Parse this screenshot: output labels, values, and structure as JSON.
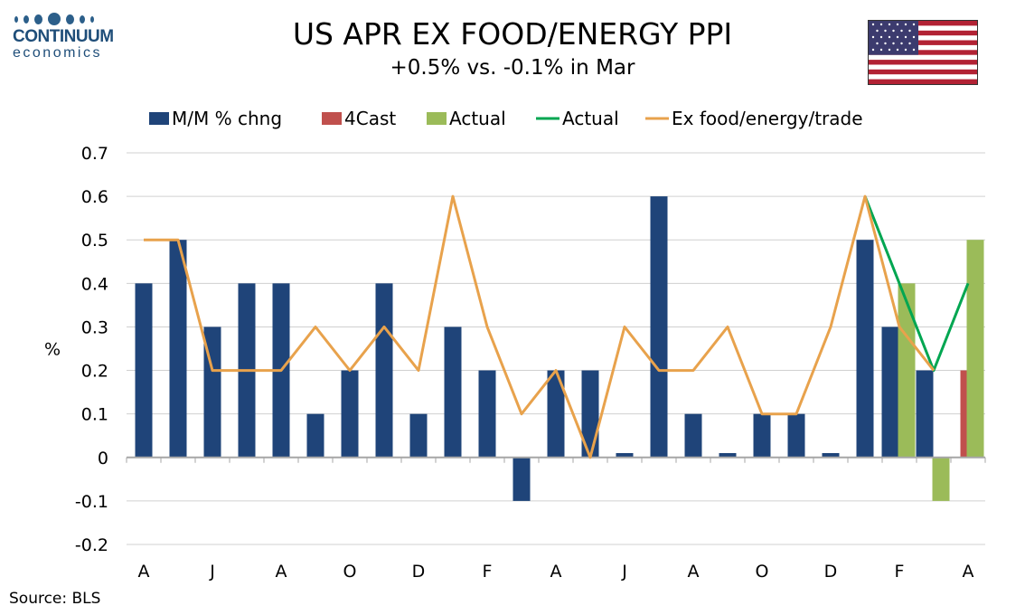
{
  "logo": {
    "name": "CONTINUUM",
    "sub": "economics"
  },
  "source": "Source: BLS",
  "colors": {
    "mm_bar": "#1f4479",
    "forecast_bar": "#c0504d",
    "actual_bar": "#9bbb59",
    "actual_line": "#00a651",
    "ex_trade_line": "#e8a24c",
    "grid": "#d0d0d0"
  },
  "chart_data": {
    "type": "bar",
    "title": "US APR EX FOOD/ENERGY PPI",
    "subtitle": "+0.5% vs. -0.1% in Mar",
    "ylabel": "%",
    "ylim": [
      -0.2,
      0.7
    ],
    "yticks": [
      "0.7",
      "0.6",
      "0.5",
      "0.4",
      "0.3",
      "0.2",
      "0.1",
      "0",
      "-0.1",
      "-0.2"
    ],
    "grid": true,
    "legend_position": "top",
    "legend": [
      "M/M % chng",
      "4Cast",
      "Actual",
      "Actual",
      "Ex food/energy/trade"
    ],
    "x_tick_labels": [
      "A",
      "J",
      "A",
      "O",
      "D",
      "F",
      "A",
      "J",
      "A",
      "O",
      "D",
      "F",
      "A"
    ],
    "n_periods": 25,
    "series": [
      {
        "name": "M/M % chng",
        "kind": "bar",
        "values": [
          0.4,
          0.5,
          0.3,
          0.4,
          0.4,
          0.1,
          0.2,
          0.4,
          0.1,
          0.3,
          0.2,
          -0.1,
          0.2,
          0.2,
          0.01,
          0.6,
          0.1,
          0.01,
          0.1,
          0.1,
          0.01,
          0.5,
          0.3,
          0.2,
          null
        ]
      },
      {
        "name": "4Cast",
        "kind": "bar",
        "values": [
          null,
          null,
          null,
          null,
          null,
          null,
          null,
          null,
          null,
          null,
          null,
          null,
          null,
          null,
          null,
          null,
          null,
          null,
          null,
          null,
          null,
          null,
          null,
          null,
          0.2
        ]
      },
      {
        "name": "Actual",
        "kind": "bar",
        "values": [
          null,
          null,
          null,
          null,
          null,
          null,
          null,
          null,
          null,
          null,
          null,
          null,
          null,
          null,
          null,
          null,
          null,
          null,
          null,
          null,
          null,
          null,
          0.4,
          -0.1,
          0.5
        ]
      },
      {
        "name": "Actual",
        "kind": "line",
        "values": [
          null,
          null,
          null,
          null,
          null,
          null,
          null,
          null,
          null,
          null,
          null,
          null,
          null,
          null,
          null,
          null,
          null,
          null,
          null,
          null,
          null,
          0.6,
          0.4,
          0.2,
          0.4
        ]
      },
      {
        "name": "Ex food/energy/trade",
        "kind": "line",
        "values": [
          0.5,
          0.5,
          0.2,
          0.2,
          0.2,
          0.3,
          0.2,
          0.3,
          0.2,
          0.6,
          0.3,
          0.1,
          0.2,
          0.0,
          0.3,
          0.2,
          0.2,
          0.3,
          0.1,
          0.1,
          0.3,
          0.6,
          0.3,
          0.2,
          null
        ]
      }
    ]
  }
}
